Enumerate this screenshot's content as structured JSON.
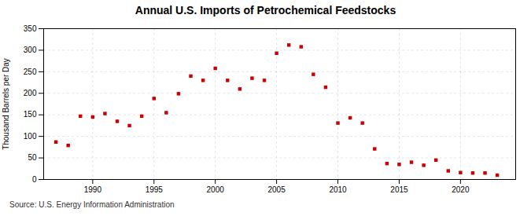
{
  "chart_data": {
    "type": "scatter",
    "title": "Annual U.S. Imports of Petrochemical Feedstocks",
    "ylabel": "Thousand Barrels per Day",
    "annotation": "Source: U.S. Energy Information Administration",
    "x": [
      1987,
      1988,
      1989,
      1990,
      1991,
      1992,
      1993,
      1994,
      1995,
      1996,
      1997,
      1998,
      1999,
      2000,
      2001,
      2002,
      2003,
      2004,
      2005,
      2006,
      2007,
      2008,
      2009,
      2010,
      2011,
      2012,
      2013,
      2014,
      2015,
      2016,
      2017,
      2018,
      2019,
      2020,
      2021,
      2022,
      2023
    ],
    "values": [
      87,
      79,
      147,
      145,
      153,
      135,
      125,
      147,
      188,
      155,
      199,
      240,
      230,
      258,
      230,
      210,
      235,
      230,
      293,
      312,
      308,
      244,
      214,
      131,
      143,
      131,
      71,
      37,
      35,
      40,
      33,
      45,
      20,
      16,
      15,
      15,
      10
    ],
    "color": "#cc0000",
    "marker": "square",
    "xlim": [
      1986,
      2024.5
    ],
    "xticks": [
      1990,
      1995,
      2000,
      2005,
      2010,
      2015,
      2020
    ],
    "ylim": [
      0,
      350
    ],
    "yticks": [
      0,
      50,
      100,
      150,
      200,
      250,
      300,
      350
    ],
    "grid": true
  }
}
